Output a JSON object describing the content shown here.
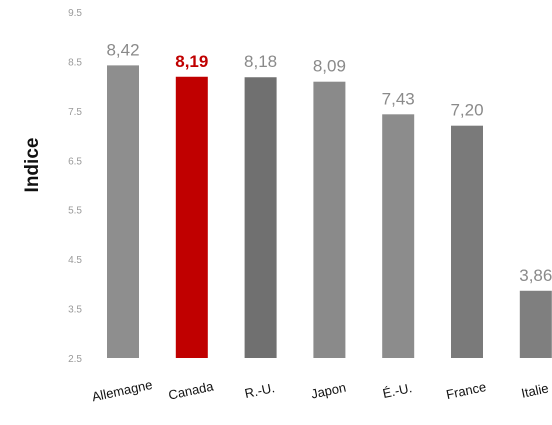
{
  "chart_data": {
    "type": "bar",
    "categories": [
      "Allemagne",
      "Canada",
      "R.-U.",
      "Japon",
      "É.-U.",
      "France",
      "Italie"
    ],
    "values": [
      8.42,
      8.19,
      8.18,
      8.09,
      7.43,
      7.2,
      3.86
    ],
    "value_labels": [
      "8,42",
      "8,19",
      "8,18",
      "8,09",
      "7,43",
      "7,20",
      "3,86"
    ],
    "title": "",
    "xlabel": "",
    "ylabel": "Indice",
    "ylim": [
      2.5,
      9.5
    ],
    "yticks": [
      2.5,
      3.5,
      4.5,
      5.5,
      6.5,
      7.5,
      8.5,
      9.5
    ],
    "ytick_labels": [
      "2.5",
      "3.5",
      "4.5",
      "5.5",
      "6.5",
      "7.5",
      "8.5",
      "9.5"
    ],
    "grid": false,
    "legend": "none",
    "highlight_index": 1,
    "colors": {
      "bars": [
        "#8e8e8e",
        "#c00000",
        "#707070",
        "#8a8a8a",
        "#8c8c8c",
        "#7a7a7a",
        "#7f7f7f"
      ],
      "highlight": "#c00000",
      "default": "#8a8a8a"
    }
  }
}
